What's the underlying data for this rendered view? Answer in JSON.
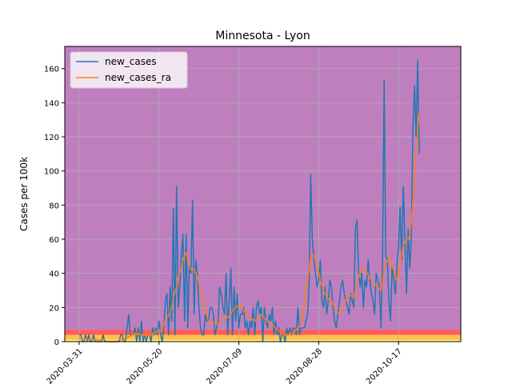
{
  "chart_data": {
    "type": "line",
    "title": "Minnesota - Lyon",
    "xlabel": "",
    "ylabel": "Cases per 100k",
    "x_tick_labels": [
      "2020-03-31",
      "2020-05-20",
      "2020-07-09",
      "2020-08-28",
      "2020-10-17"
    ],
    "y_ticks": [
      0,
      20,
      40,
      60,
      80,
      100,
      120,
      140,
      160
    ],
    "ylim": [
      0,
      173
    ],
    "xlim": [
      "2020-03-22",
      "2020-11-25"
    ],
    "grid": true,
    "legend_position": "upper left",
    "background_bands": [
      {
        "from": 0,
        "to": 1,
        "color": "#ffff66"
      },
      {
        "from": 1,
        "to": 4,
        "color": "#ffc04d"
      },
      {
        "from": 4,
        "to": 7,
        "color": "#ff5c5c"
      },
      {
        "from": 7,
        "to": 173,
        "color": "#bf7fbf"
      }
    ],
    "series": [
      {
        "name": "new_cases",
        "color": "#1f77b4",
        "start_date": "2020-03-31",
        "values": [
          4,
          4,
          0,
          0,
          4,
          0,
          4,
          0,
          0,
          4,
          0,
          0,
          0,
          0,
          0,
          4,
          0,
          0,
          0,
          0,
          0,
          0,
          0,
          0,
          0,
          0,
          4,
          4,
          0,
          0,
          8,
          16,
          4,
          4,
          4,
          8,
          0,
          8,
          0,
          12,
          0,
          4,
          0,
          4,
          4,
          0,
          8,
          4,
          8,
          4,
          12,
          4,
          0,
          8,
          24,
          28,
          4,
          32,
          12,
          78,
          4,
          91,
          20,
          32,
          51,
          63,
          12,
          63,
          8,
          44,
          40,
          83,
          16,
          48,
          40,
          20,
          8,
          4,
          4,
          16,
          12,
          12,
          20,
          20,
          16,
          4,
          8,
          12,
          32,
          28,
          20,
          16,
          40,
          4,
          24,
          43,
          4,
          32,
          12,
          28,
          8,
          16,
          16,
          20,
          8,
          12,
          4,
          12,
          8,
          20,
          4,
          20,
          24,
          16,
          20,
          0,
          20,
          12,
          8,
          16,
          12,
          20,
          4,
          12,
          4,
          8,
          0,
          4,
          4,
          0,
          8,
          4,
          8,
          4,
          8,
          8,
          4,
          20,
          4,
          8,
          8,
          8,
          12,
          16,
          32,
          98,
          60,
          48,
          40,
          32,
          36,
          48,
          24,
          20,
          32,
          16,
          24,
          36,
          32,
          20,
          12,
          8,
          16,
          24,
          32,
          36,
          28,
          24,
          20,
          16,
          28,
          24,
          20,
          66,
          71,
          40,
          32,
          40,
          20,
          36,
          32,
          48,
          36,
          28,
          24,
          16,
          40,
          36,
          32,
          8,
          48,
          153,
          50,
          48,
          24,
          12,
          44,
          36,
          28,
          44,
          56,
          79,
          48,
          91,
          60,
          28,
          66,
          43,
          60,
          125,
          150,
          120,
          165,
          110
        ]
      },
      {
        "name": "new_cases_ra",
        "color": "#ff7f0e",
        "start_date": "2020-03-31",
        "values": [
          2,
          2,
          2,
          2,
          2,
          1,
          1,
          1,
          1,
          1,
          1,
          1,
          1,
          1,
          1,
          1,
          1,
          0,
          0,
          0,
          0,
          0,
          0,
          0,
          0,
          1,
          1,
          1,
          1,
          2,
          2,
          3,
          3,
          4,
          4,
          5,
          4,
          5,
          4,
          4,
          4,
          4,
          3,
          4,
          4,
          4,
          5,
          5,
          6,
          6,
          7,
          6,
          8,
          10,
          13,
          14,
          15,
          17,
          20,
          26,
          29,
          32,
          38,
          40,
          44,
          48,
          50,
          52,
          48,
          45,
          42,
          43,
          42,
          40,
          38,
          34,
          30,
          26,
          22,
          18,
          15,
          12,
          11,
          11,
          11,
          11,
          11,
          10,
          11,
          13,
          14,
          15,
          15,
          14,
          15,
          16,
          18,
          19,
          20,
          21,
          21,
          22,
          20,
          18,
          17,
          16,
          15,
          14,
          13,
          13,
          12,
          13,
          14,
          15,
          16,
          15,
          14,
          13,
          12,
          11,
          10,
          10,
          9,
          8,
          7,
          6,
          6,
          5,
          4,
          4,
          4,
          4,
          5,
          5,
          5,
          6,
          7,
          8,
          9,
          10,
          14,
          22,
          30,
          36,
          42,
          50,
          51,
          50,
          47,
          43,
          40,
          36,
          33,
          30,
          28,
          26,
          25,
          24,
          24,
          22,
          20,
          18,
          17,
          17,
          18,
          20,
          22,
          24,
          26,
          27,
          27,
          26,
          26,
          30,
          34,
          38,
          41,
          43,
          44,
          43,
          41,
          39,
          37,
          36,
          35,
          34,
          33,
          32,
          31,
          30,
          34,
          44,
          46,
          47,
          49,
          47,
          44,
          42,
          38,
          36,
          40,
          46,
          52,
          56,
          58,
          60,
          60,
          62,
          70,
          82,
          98,
          112,
          124,
          134
        ]
      }
    ]
  }
}
